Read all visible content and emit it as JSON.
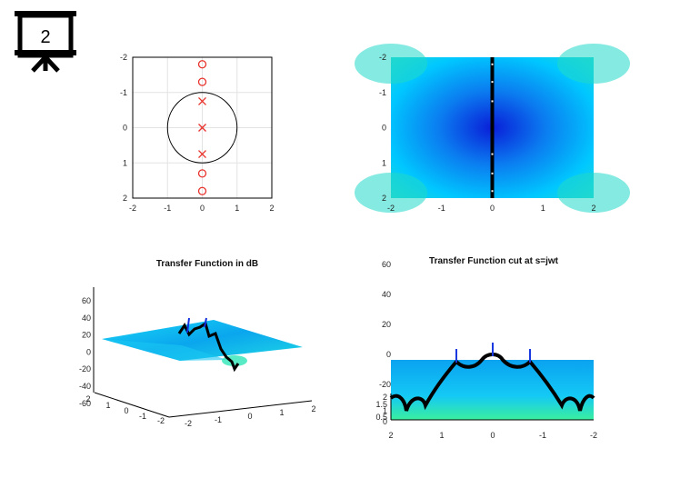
{
  "badge": {
    "number": "2"
  },
  "chart_data": [
    {
      "type": "scatter",
      "title": "",
      "xlim": [
        -2,
        2
      ],
      "ylim": [
        -2,
        2
      ],
      "xticks": [
        "-2",
        "-1",
        "0",
        "1",
        "2"
      ],
      "yticks": [
        "-2",
        "-1",
        "0",
        "1",
        "2"
      ],
      "grid": true,
      "unit_circle": true,
      "poles": [
        [
          0,
          0.75
        ],
        [
          0,
          0
        ],
        [
          0,
          -0.75
        ]
      ],
      "zeros": [
        [
          0,
          1.8
        ],
        [
          0,
          1.3
        ],
        [
          0,
          -1.3
        ],
        [
          0,
          -1.8
        ]
      ],
      "colors": {
        "marker": "#e8322b",
        "circle": "#000000",
        "grid": "#e3e3e3"
      }
    },
    {
      "type": "heatmap",
      "title": "",
      "xlim": [
        -2,
        2
      ],
      "ylim": [
        -2,
        2
      ],
      "xticks": [
        "-2",
        "-1",
        "0",
        "1",
        "2"
      ],
      "yticks": [
        "-2",
        "-1",
        "0",
        "1",
        "2"
      ],
      "cut_line_x": 0,
      "colors": {
        "low": "#0a1fd8",
        "mid": "#00c8ff",
        "high": "#3df0a0",
        "line": "#000000"
      }
    },
    {
      "type": "area",
      "title": "Transfer Function in dB",
      "zticks": [
        "60",
        "40",
        "20",
        "0",
        "-20",
        "-40",
        "-60"
      ],
      "yticks": [
        "2",
        "1",
        "0",
        "-1",
        "-2"
      ],
      "xticks": [
        "-2",
        "-1",
        "0",
        "1",
        "2"
      ]
    },
    {
      "type": "area",
      "title": "Transfer Function cut at s=jwt",
      "zticks": [
        "60",
        "40",
        "20",
        "0",
        "-20"
      ],
      "yticks": [
        "2",
        "1.5",
        "1",
        "0.5",
        "0"
      ],
      "xticks": [
        "2",
        "1",
        "0",
        "-1",
        "-2"
      ]
    }
  ]
}
